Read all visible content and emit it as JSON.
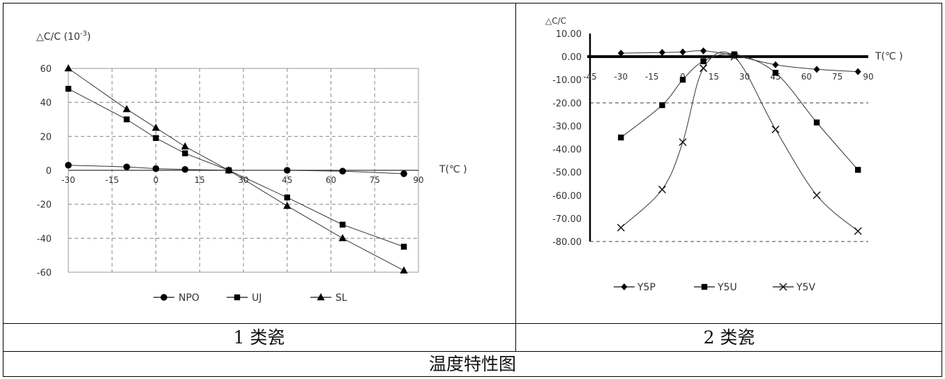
{
  "captions": {
    "left": "1 类瓷",
    "right": "2 类瓷",
    "main": "温度特性图"
  },
  "chart_data": [
    {
      "type": "line",
      "ylabel": "△C/C (10",
      "ylabel_exp": "-3",
      "ylabel_close": ")",
      "xlabel": "T(℃ )",
      "xlim": [
        -30,
        90
      ],
      "ylim": [
        -60,
        60
      ],
      "x_ticks": [
        -30,
        -15,
        0,
        15,
        30,
        45,
        60,
        75,
        90
      ],
      "x_tick_labels": [
        "-30",
        "-15",
        "0",
        "15",
        "30",
        "45",
        "60",
        "75",
        "90"
      ],
      "y_ticks": [
        -60,
        -40,
        -20,
        0,
        20,
        40,
        60
      ],
      "y_tick_labels": [
        "-60",
        "-40",
        "-20",
        "0",
        "20",
        "40",
        "60"
      ],
      "grid": true,
      "legend": "bottom",
      "series": [
        {
          "name": "NPO",
          "marker": "circle",
          "x": [
            -30,
            -10,
            0,
            10,
            25,
            45,
            64,
            85
          ],
          "y": [
            3,
            2,
            1,
            0.5,
            0,
            0,
            -0.5,
            -2
          ]
        },
        {
          "name": "UJ",
          "marker": "square",
          "x": [
            -30,
            -10,
            0,
            10,
            25,
            45,
            64,
            85
          ],
          "y": [
            48,
            30,
            19,
            10,
            0,
            -16,
            -32,
            -45
          ]
        },
        {
          "name": "SL",
          "marker": "triangle",
          "x": [
            -30,
            -10,
            0,
            10,
            25,
            45,
            64,
            85
          ],
          "y": [
            60,
            36,
            25,
            14,
            0,
            -21,
            -40,
            -59
          ]
        }
      ]
    },
    {
      "type": "line",
      "ylabel": "△C/C",
      "xlabel": "T(℃ )",
      "xlim": [
        -45,
        90
      ],
      "ylim": [
        -80,
        10
      ],
      "x_ticks": [
        -45,
        -30,
        -15,
        0,
        15,
        30,
        45,
        60,
        75,
        90
      ],
      "x_tick_labels": [
        "-45",
        "-30",
        "-15",
        "0",
        "15",
        "30",
        "45",
        "60",
        "75",
        "90"
      ],
      "y_ticks": [
        10,
        0,
        -10,
        -20,
        -30,
        -40,
        -50,
        -60,
        -70,
        -80
      ],
      "y_tick_labels": [
        "10.00",
        "0.00",
        "-10.00",
        "-20.00",
        "-30.00",
        "-40.00",
        "-50.00",
        "-60.00",
        "-70.00",
        "-80.00"
      ],
      "grid": "partial-dashed",
      "legend": "bottom",
      "series": [
        {
          "name": "Y5P",
          "marker": "diamond",
          "x": [
            -30,
            -10,
            0,
            10,
            25,
            45,
            65,
            85
          ],
          "y": [
            1.5,
            1.8,
            2.0,
            2.5,
            0.5,
            -3.5,
            -5.5,
            -6.5
          ]
        },
        {
          "name": "Y5U",
          "marker": "square",
          "x": [
            -30,
            -10,
            0,
            10,
            25,
            45,
            65,
            85
          ],
          "y": [
            -35,
            -21,
            -10,
            -2,
            1,
            -7,
            -28.5,
            -49
          ]
        },
        {
          "name": "Y5V",
          "marker": "x",
          "x": [
            -30,
            -10,
            0,
            10,
            25,
            45,
            65,
            85
          ],
          "y": [
            -74,
            -57.5,
            -37,
            -5,
            0,
            -31.5,
            -60,
            -75.5
          ]
        }
      ]
    }
  ]
}
